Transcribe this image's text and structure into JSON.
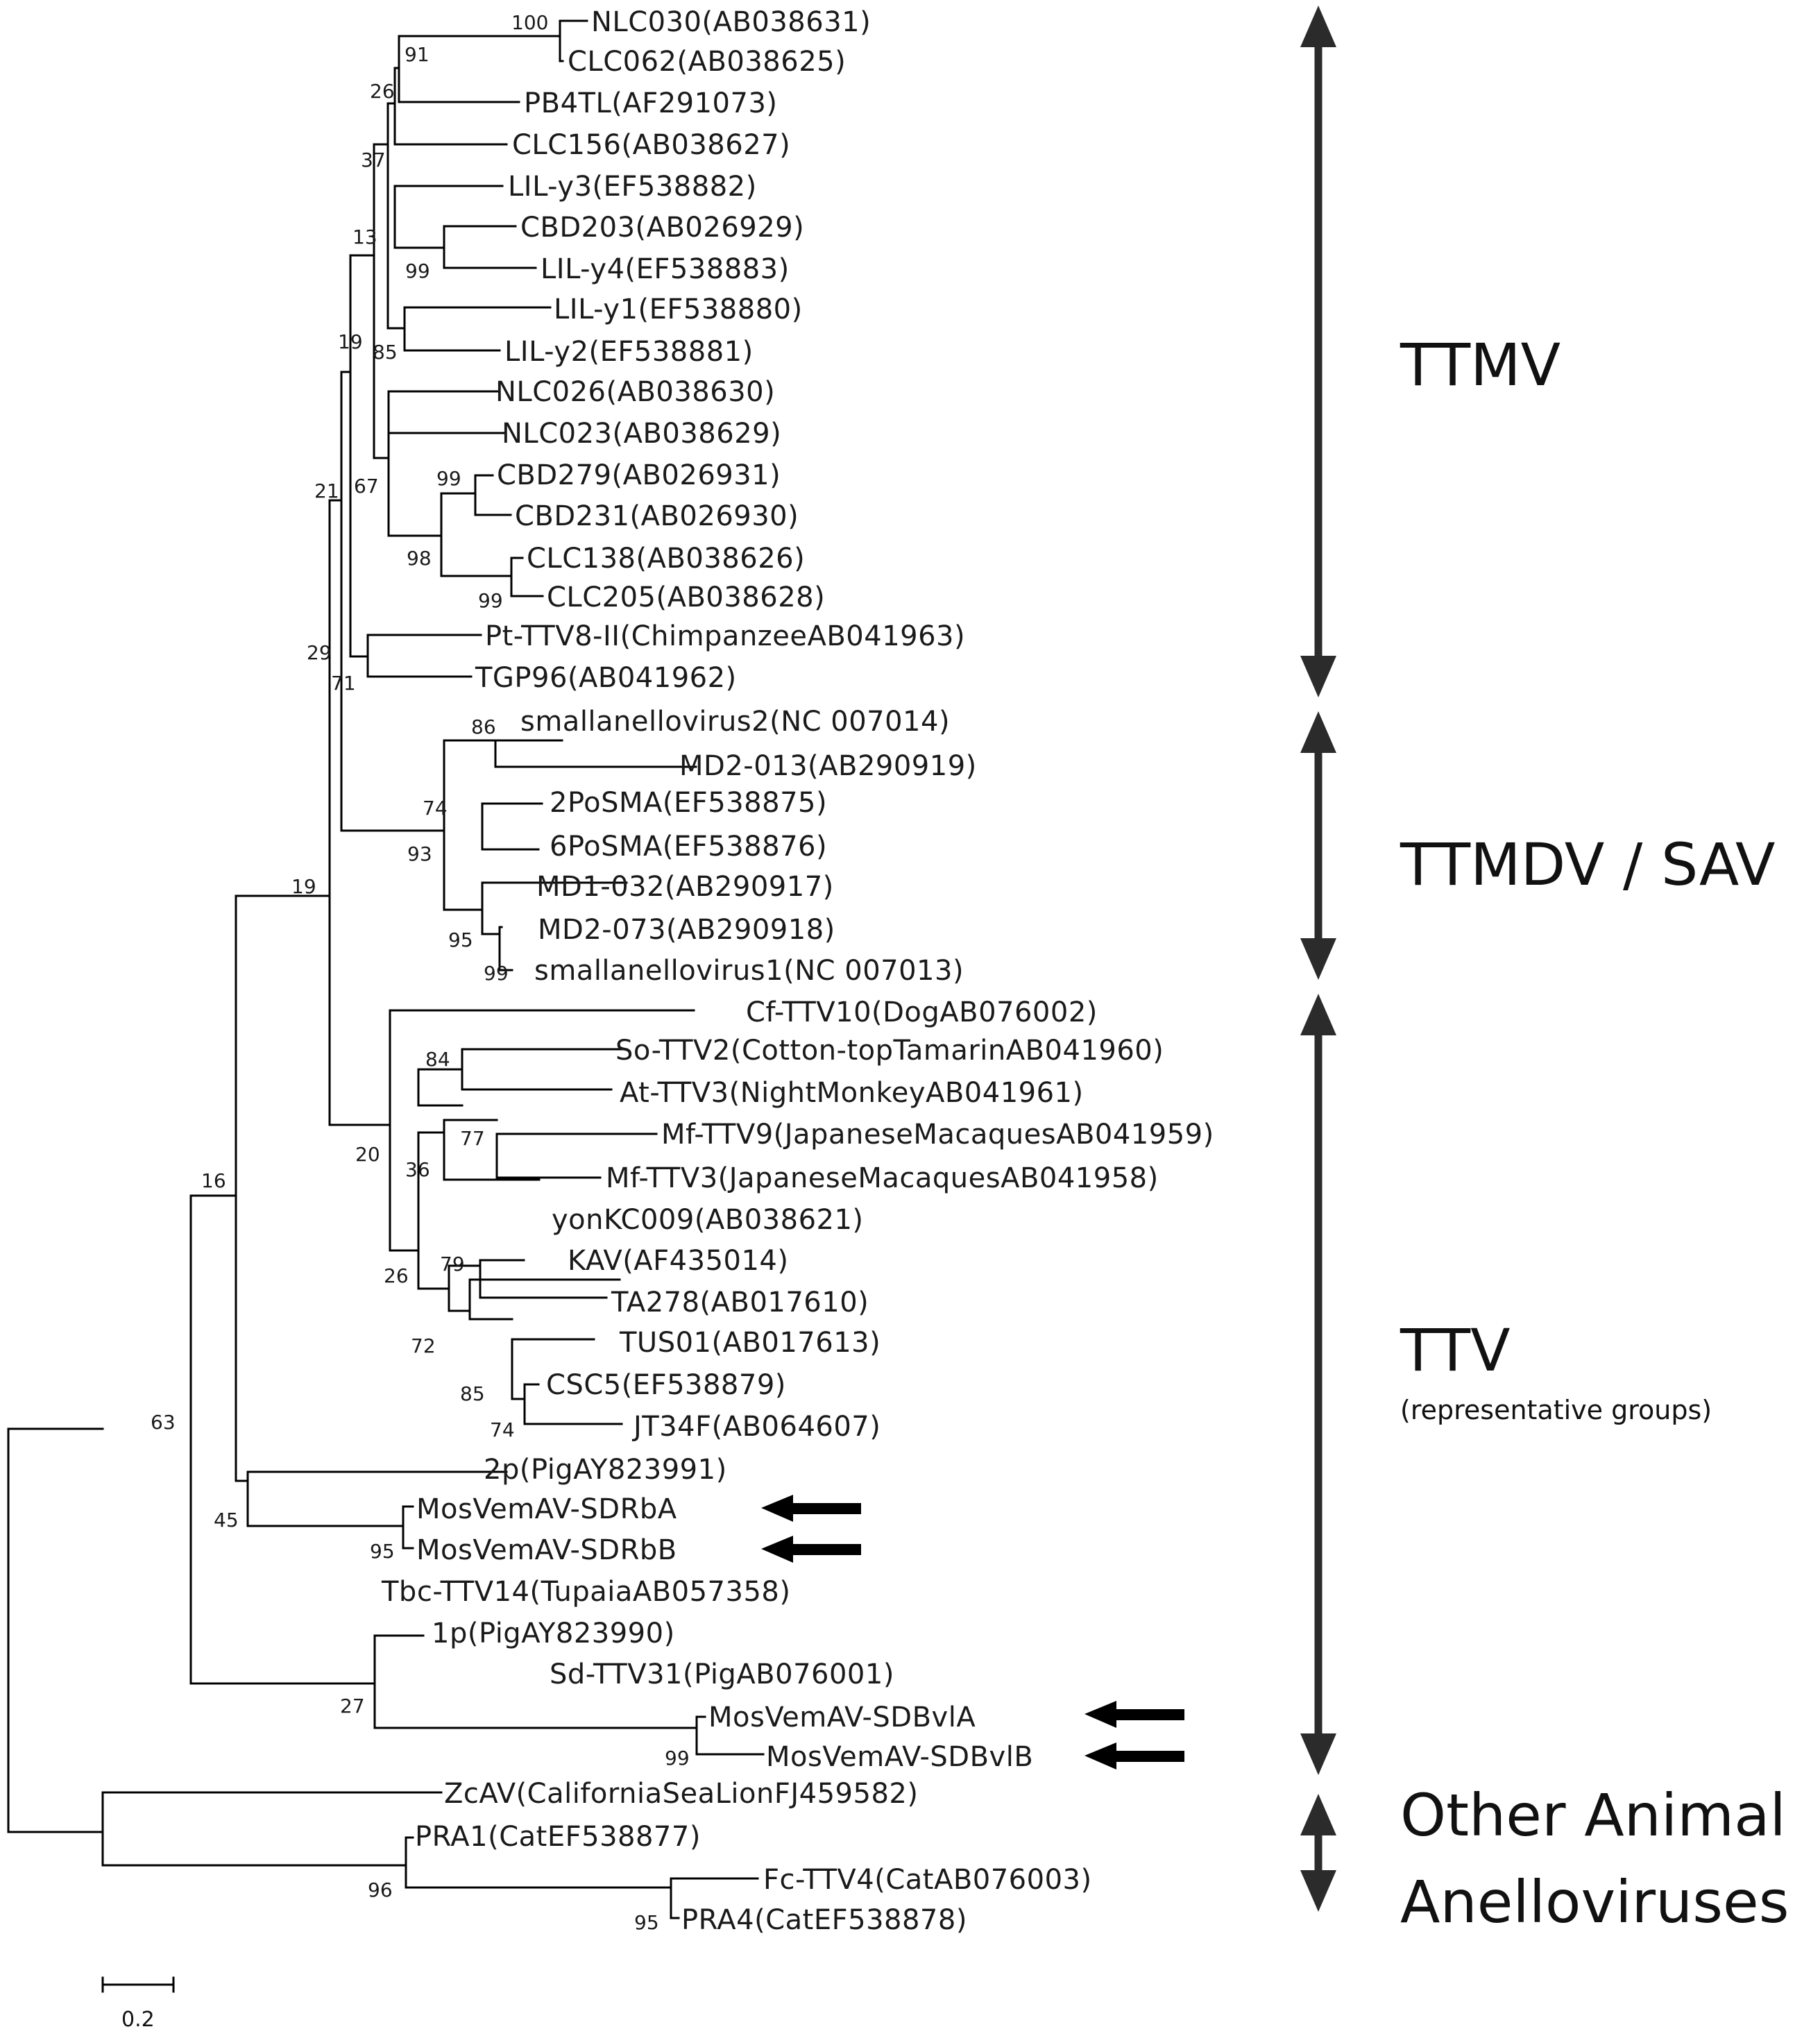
{
  "taxa": {
    "NLC030": "NLC030(AB038631)",
    "CLC062": "CLC062(AB038625)",
    "PB4TL": "PB4TL(AF291073)",
    "CLC156": "CLC156(AB038627)",
    "LILy3": "LIL-y3(EF538882)",
    "CBD203": "CBD203(AB026929)",
    "LILy4": "LIL-y4(EF538883)",
    "LILy1": "LIL-y1(EF538880)",
    "LILy2": "LIL-y2(EF538881)",
    "NLC026": "NLC026(AB038630)",
    "NLC023": "NLC023(AB038629)",
    "CBD279": "CBD279(AB026931)",
    "CBD231": "CBD231(AB026930)",
    "CLC138": "CLC138(AB038626)",
    "CLC205": "CLC205(AB038628)",
    "PtTTV8": "Pt-TTV8-II(ChimpanzeeAB041963)",
    "TGP96": "TGP96(AB041962)",
    "small2": "smallanellovirus2(NC 007014)",
    "MD2013": "MD2-013(AB290919)",
    "PoSMA2": "2PoSMA(EF538875)",
    "PoSMA6": "6PoSMA(EF538876)",
    "MD1032": "MD1-032(AB290917)",
    "MD2073": "MD2-073(AB290918)",
    "small1": "smallanellovirus1(NC 007013)",
    "CfTTV10": "Cf-TTV10(DogAB076002)",
    "SoTTV2": "So-TTV2(Cotton-topTamarinAB041960)",
    "AtTTV3": "At-TTV3(NightMonkeyAB041961)",
    "MfTTV9": "Mf-TTV9(JapaneseMacaquesAB041959)",
    "MfTTV3": "Mf-TTV3(JapaneseMacaquesAB041958)",
    "yonKC009": "yonKC009(AB038621)",
    "KAV": "KAV(AF435014)",
    "TA278": "TA278(AB017610)",
    "TUS01": "TUS01(AB017613)",
    "CSC5": "CSC5(EF538879)",
    "JT34F": "JT34F(AB064607)",
    "p2": "2p(PigAY823991)",
    "SDRbA": "MosVemAV-SDRbA",
    "SDRbB": "MosVemAV-SDRbB",
    "TbcTTV14": "Tbc-TTV14(TupaiaAB057358)",
    "p1": "1p(PigAY823990)",
    "SdTTV31": "Sd-TTV31(PigAB076001)",
    "SDBvlA": "MosVemAV-SDBvlA",
    "SDBvlB": "MosVemAV-SDBvlB",
    "ZcAV": "ZcAV(CaliforniaSeaLionFJ459582)",
    "PRA1": "PRA1(CatEF538877)",
    "FcTTV4": "Fc-TTV4(CatAB076003)",
    "PRA4": "PRA4(CatEF538878)"
  },
  "support": {
    "s100": "100",
    "s91": "91",
    "s26a": "26",
    "s37": "37",
    "s13": "13",
    "s99a": "99",
    "s85": "85",
    "s19a": "19",
    "s67": "67",
    "s99b": "99",
    "s21": "21",
    "s98": "98",
    "s99c": "99",
    "s29": "29",
    "s71": "71",
    "s86": "86",
    "s74a": "74",
    "s93": "93",
    "s95a": "95",
    "s99d": "99",
    "s19b": "19",
    "s84": "84",
    "s77": "77",
    "s36": "36",
    "s20": "20",
    "s79": "79",
    "s26b": "26",
    "s72": "72",
    "s85b": "85",
    "s74b": "74",
    "s16": "16",
    "s63": "63",
    "s45": "45",
    "s95b": "95",
    "s27": "27",
    "s99e": "99",
    "s96": "96",
    "s95c": "95"
  },
  "groups": {
    "ttmv": "TTMV",
    "ttmdv": "TTMDV / SAV",
    "ttv": "TTV",
    "ttv_sub": "(representative groups)",
    "other_line1": "Other Animal",
    "other_line2": "Anelloviruses"
  },
  "scale_bar": {
    "label": "0.2"
  }
}
